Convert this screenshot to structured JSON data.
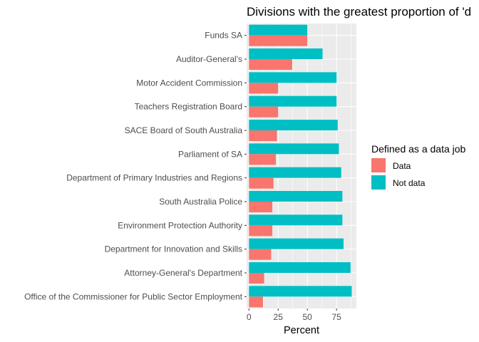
{
  "chart_data": {
    "type": "bar",
    "orientation": "horizontal",
    "title": "Divisions with the greatest proportion of 'd",
    "xlabel": "Percent",
    "ylabel": "",
    "xlim": [
      -2,
      92
    ],
    "xticks": [
      0,
      25,
      50,
      75
    ],
    "grid": true,
    "legend_position": "right",
    "legend_title": "Defined as a data job",
    "categories": [
      "Funds SA",
      "Auditor-General's",
      "Motor Accident Commission",
      "Teachers Registration Board",
      "SACE Board of South Australia",
      "Parliament of SA",
      "Department of Primary Industries and Regions",
      "South Australia Police",
      "Environment Protection Authority",
      "Department for Innovation and Skills",
      "Attorney-General's Department",
      "Office of the Commissioner for Public Sector Employment"
    ],
    "series": [
      {
        "name": "Data",
        "color": "#F8766D",
        "values": [
          50,
          37,
          25,
          25,
          24,
          23,
          21,
          20,
          20,
          19,
          13,
          12
        ]
      },
      {
        "name": "Not data",
        "color": "#00BFC4",
        "values": [
          50,
          63,
          75,
          75,
          76,
          77,
          79,
          80,
          80,
          81,
          87,
          88
        ]
      }
    ]
  },
  "colors": {
    "panel_background": "#EBEBEB",
    "gridline": "#FFFFFF"
  }
}
